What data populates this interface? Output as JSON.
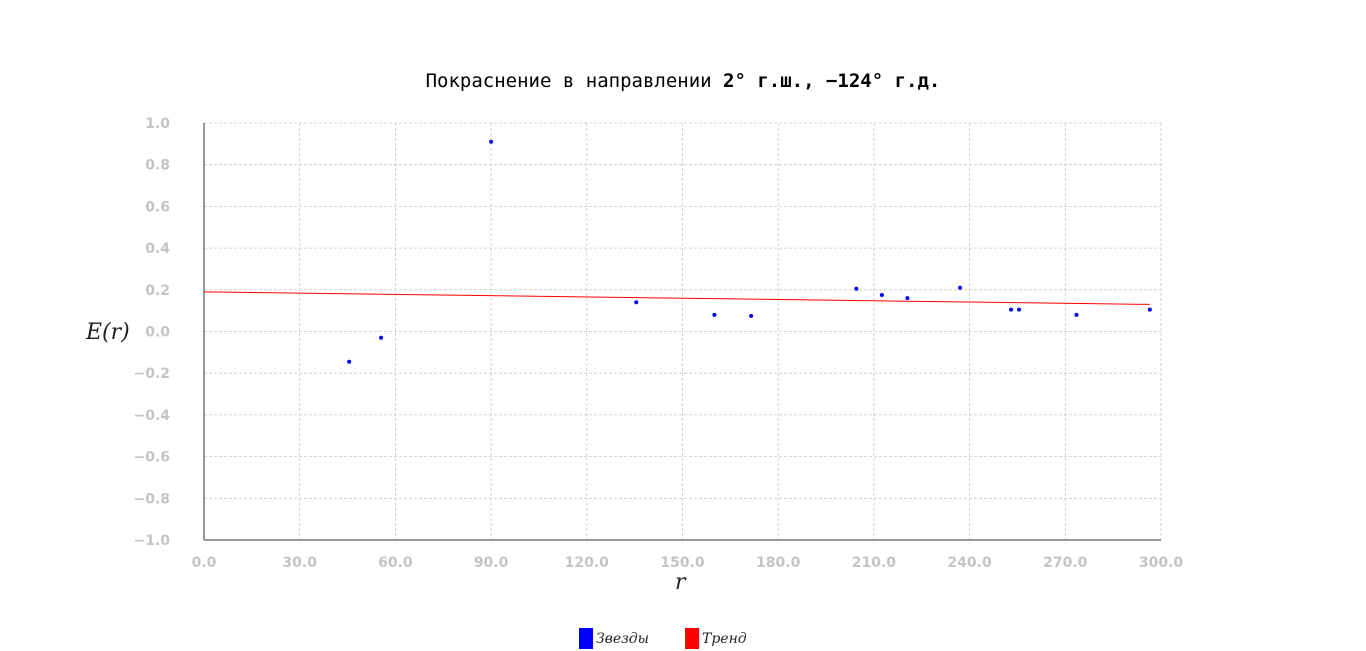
{
  "chart_data": {
    "type": "scatter",
    "title_parts": [
      {
        "text": "Покраснение в направлении ",
        "bold": false
      },
      {
        "text": "2° г.ш., −124° г.д.",
        "bold": true
      }
    ],
    "xlabel": "r",
    "ylabel": "E(r)",
    "xlim": [
      0,
      300
    ],
    "ylim": [
      -1.0,
      1.0
    ],
    "x_ticks": [
      0,
      30,
      60,
      90,
      120,
      150,
      180,
      210,
      240,
      270,
      300
    ],
    "x_tick_labels": [
      "0.0",
      "30.0",
      "60.0",
      "90.0",
      "120.0",
      "150.0",
      "180.0",
      "210.0",
      "240.0",
      "270.0",
      "300.0"
    ],
    "y_ticks": [
      1.0,
      0.8,
      0.6,
      0.4,
      0.2,
      0.0,
      -0.2,
      -0.4,
      -0.6,
      -0.8,
      -1.0
    ],
    "y_tick_labels": [
      "1.0",
      "0.8",
      "0.6",
      "0.4",
      "0.2",
      "0.0",
      "−0.2",
      "−0.4",
      "−0.6",
      "−0.8",
      "−1.0"
    ],
    "grid": true,
    "legend_position": "bottom-center",
    "series": [
      {
        "name": "Звезды",
        "kind": "scatter",
        "color": "#0000ff",
        "points": [
          [
            45.5,
            -0.145
          ],
          [
            55.5,
            -0.03
          ],
          [
            90.0,
            0.91
          ],
          [
            135.5,
            0.14
          ],
          [
            160.0,
            0.08
          ],
          [
            171.5,
            0.075
          ],
          [
            204.5,
            0.205
          ],
          [
            212.5,
            0.175
          ],
          [
            220.5,
            0.16
          ],
          [
            237.0,
            0.21
          ],
          [
            253.0,
            0.105
          ],
          [
            255.5,
            0.105
          ],
          [
            273.5,
            0.08
          ],
          [
            296.5,
            0.105
          ]
        ]
      },
      {
        "name": "Тренд",
        "kind": "line",
        "color": "#ff0000",
        "points": [
          [
            0.0,
            0.19
          ],
          [
            296.5,
            0.13
          ]
        ]
      }
    ]
  }
}
